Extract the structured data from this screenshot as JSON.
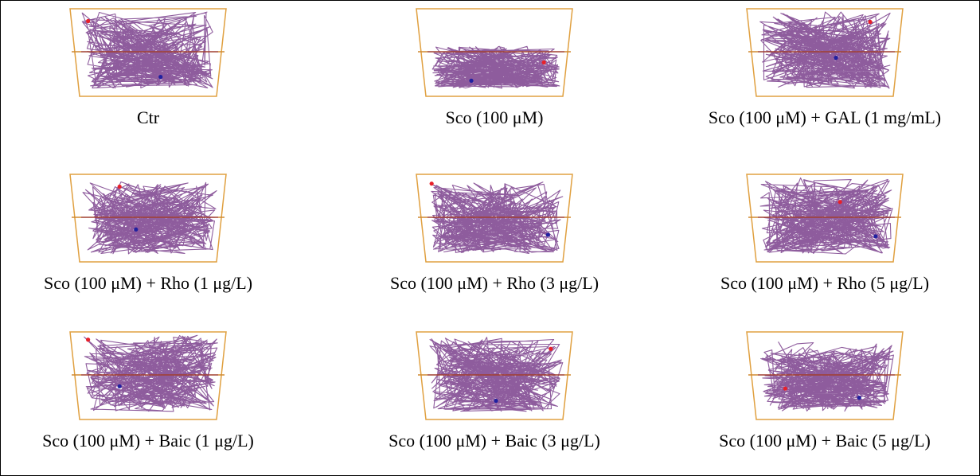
{
  "panels": [
    {
      "label": "Ctr"
    },
    {
      "label": "Sco (100 μM)"
    },
    {
      "label": "Sco (100 μM) + GAL (1 mg/mL)"
    },
    {
      "label": "Sco (100 μM) + Rho (1 μg/L)"
    },
    {
      "label": "Sco (100 μM) + Rho (3 μg/L)"
    },
    {
      "label": "Sco (100 μM) + Rho (5 μg/L)"
    },
    {
      "label": "Sco (100 μM) + Baic (1 μg/L)"
    },
    {
      "label": "Sco (100 μM) + Baic (3 μg/L)"
    },
    {
      "label": "Sco (100 μM) + Baic (5 μg/L)"
    }
  ]
}
